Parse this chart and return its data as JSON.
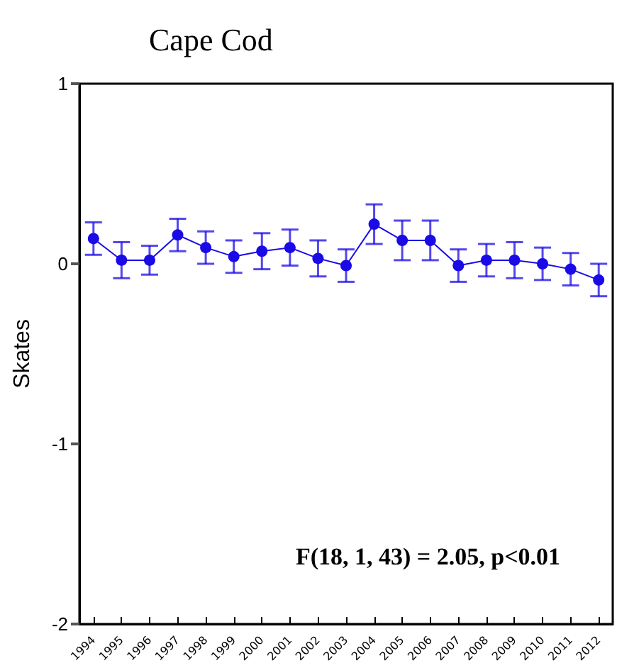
{
  "chart_data": {
    "type": "line",
    "title": "Cape Cod",
    "ylabel": "Skates",
    "categories": [
      "1994",
      "1995",
      "1996",
      "1997",
      "1998",
      "1999",
      "2000",
      "2001",
      "2002",
      "2003",
      "2004",
      "2005",
      "2006",
      "2007",
      "2008",
      "2009",
      "2010",
      "2011",
      "2012"
    ],
    "series": [
      {
        "color": "#1a0ae6",
        "values": [
          0.14,
          0.02,
          0.02,
          0.16,
          0.09,
          0.04,
          0.07,
          0.09,
          0.03,
          -0.01,
          0.22,
          0.13,
          0.13,
          -0.01,
          0.02,
          0.02,
          0,
          -0.03,
          -0.09
        ],
        "errors": [
          0.09,
          0.1,
          0.08,
          0.09,
          0.09,
          0.09,
          0.1,
          0.1,
          0.1,
          0.09,
          0.11,
          0.11,
          0.11,
          0.09,
          0.09,
          0.1,
          0.09,
          0.09,
          0.09
        ]
      }
    ],
    "ylim": [
      -2,
      1
    ],
    "yticks": [
      -2,
      -1,
      0,
      1
    ],
    "grid": false,
    "marker": "circle",
    "line_style": "solid",
    "annotations": [
      "F(18, 1, 43) = 2.05, p<0.01"
    ]
  }
}
